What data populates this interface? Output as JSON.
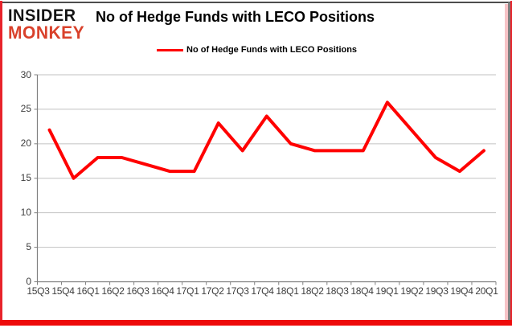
{
  "brand": {
    "logo_line1": "INSIDER",
    "logo_line2": "MONKEY",
    "logo_color1": "#141414",
    "logo_color2": "#d9412b"
  },
  "title": "No of Hedge Funds with LECO Positions",
  "legend": {
    "label": "No of Hedge Funds with LECO Positions",
    "line_color": "#ff0000"
  },
  "chart_data": {
    "type": "line",
    "title": "No of Hedge Funds with LECO Positions",
    "categories": [
      "15Q3",
      "15Q4",
      "16Q1",
      "16Q2",
      "16Q3",
      "16Q4",
      "17Q1",
      "17Q2",
      "17Q3",
      "17Q4",
      "18Q1",
      "18Q2",
      "18Q3",
      "18Q4",
      "19Q1",
      "19Q2",
      "19Q3",
      "19Q4",
      "20Q1"
    ],
    "series": [
      {
        "name": "No of Hedge Funds with LECO Positions",
        "color": "#ff0000",
        "values": [
          22,
          15,
          18,
          18,
          17,
          16,
          16,
          23,
          19,
          24,
          20,
          19,
          19,
          19,
          26,
          22,
          18,
          16,
          19
        ]
      }
    ],
    "xlabel": "",
    "ylabel": "",
    "ylim": [
      0,
      30
    ],
    "yticks": [
      0,
      5,
      10,
      15,
      20,
      25,
      30
    ],
    "grid": true,
    "gridline_color": "#c2c2c2",
    "axis_color": "#808080",
    "legend_position": "top-center",
    "background": "#ffffff"
  }
}
